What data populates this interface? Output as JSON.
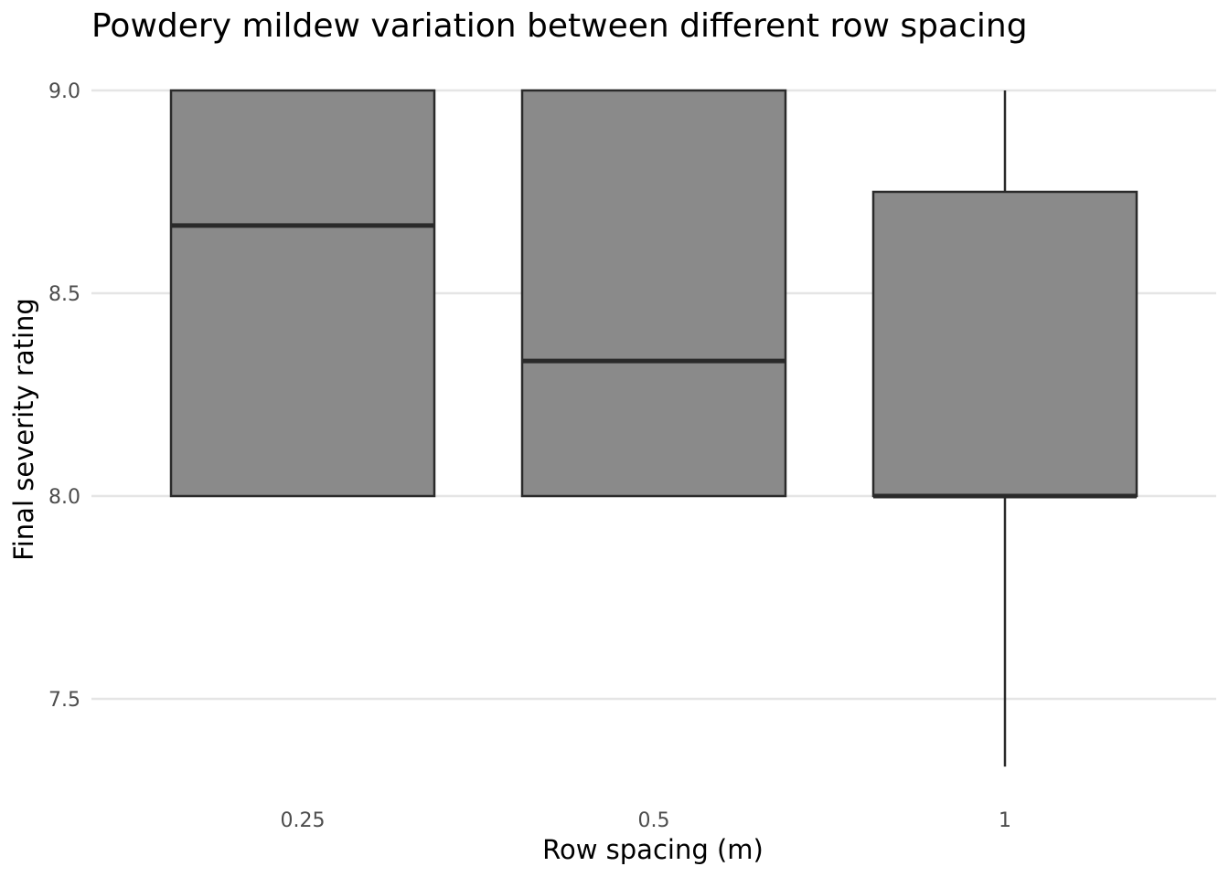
{
  "chart_data": {
    "type": "boxplot",
    "title": "Powdery mildew variation between different row spacing",
    "xlabel": "Row spacing (m)",
    "ylabel": "Final severity rating",
    "ylim": [
      7.335,
      9.0
    ],
    "yticks": [
      7.5,
      8.0,
      8.5,
      9.0
    ],
    "ytick_labels": [
      "7.5",
      "8.0",
      "8.5",
      "9.0"
    ],
    "grid": true,
    "legend": "none",
    "box_fill": "#8a8a8a",
    "box_stroke": "#2a2a2a",
    "categories": [
      "0.25",
      "0.5",
      "1"
    ],
    "boxes": [
      {
        "category": "0.25",
        "min": 8.0,
        "q1": 8.0,
        "median": 8.667,
        "q3": 9.0,
        "max": 9.0
      },
      {
        "category": "0.5",
        "min": 8.0,
        "q1": 8.0,
        "median": 8.333,
        "q3": 9.0,
        "max": 9.0
      },
      {
        "category": "1",
        "min": 7.333,
        "q1": 8.0,
        "median": 8.0,
        "q3": 8.75,
        "max": 9.0
      }
    ]
  }
}
